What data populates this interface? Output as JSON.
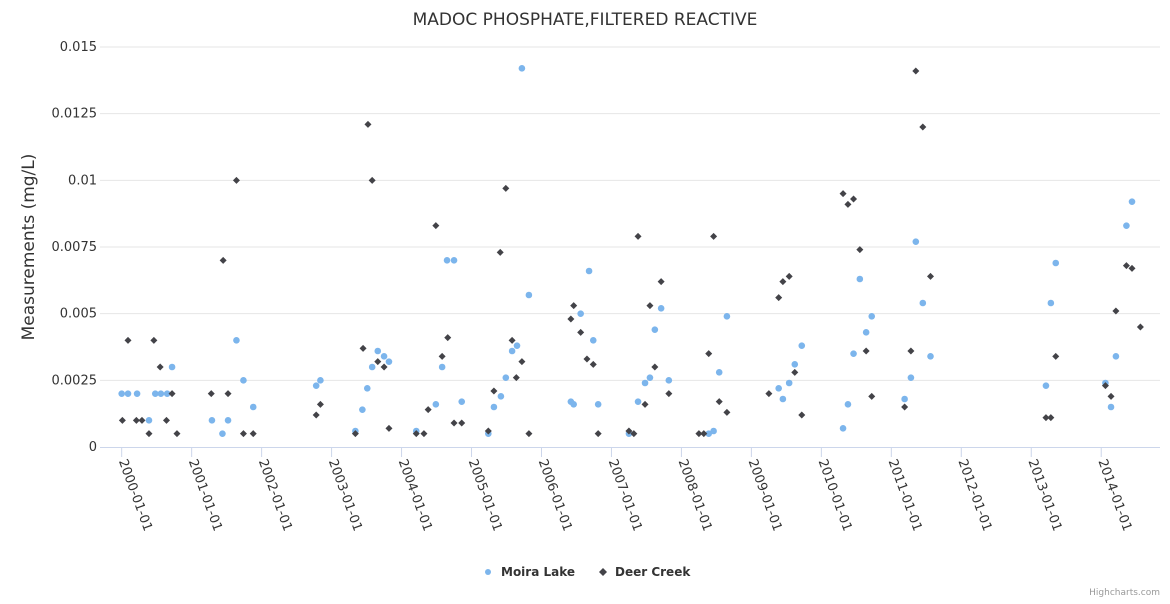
{
  "chart_data": {
    "type": "scatter",
    "title": "MADOC PHOSPHATE,FILTERED REACTIVE",
    "xlabel": "",
    "ylabel": "Measurements (mg/L)",
    "xlim": [
      1999.69,
      2014.84
    ],
    "ylim": [
      0,
      0.015
    ],
    "grid": true,
    "legend_position": "bottom-center",
    "x_ticks": [
      2000,
      2001,
      2002,
      2003,
      2004,
      2005,
      2006,
      2007,
      2008,
      2009,
      2010,
      2011,
      2012,
      2013,
      2014
    ],
    "x_tick_labels": [
      "2000-01-01",
      "2001-01-01",
      "2002-01-01",
      "2003-01-01",
      "2004-01-01",
      "2005-01-01",
      "2006-01-01",
      "2007-01-01",
      "2008-01-01",
      "2009-01-01",
      "2010-01-01",
      "2011-01-01",
      "2012-01-01",
      "2013-01-01",
      "2014-01-01"
    ],
    "y_ticks": [
      0,
      0.0025,
      0.005,
      0.0075,
      0.01,
      0.0125,
      0.015
    ],
    "y_tick_labels": [
      "0",
      "0.0025",
      "0.005",
      "0.0075",
      "0.01",
      "0.0125",
      "0.015"
    ],
    "series": [
      {
        "name": "Moira Lake",
        "color": "#7cb5ec",
        "marker": "circle",
        "x": [
          2000.0,
          2000.09,
          2000.22,
          2000.39,
          2000.48,
          2000.56,
          2000.65,
          2000.72,
          2001.29,
          2001.44,
          2001.52,
          2001.64,
          2001.74,
          2001.88,
          2002.78,
          2002.84,
          2003.34,
          2003.44,
          2003.51,
          2003.58,
          2003.66,
          2003.75,
          2003.82,
          2004.21,
          2004.49,
          2004.58,
          2004.65,
          2004.75,
          2004.86,
          2005.24,
          2005.32,
          2005.42,
          2005.49,
          2005.58,
          2005.65,
          2005.72,
          2005.82,
          2006.42,
          2006.46,
          2006.56,
          2006.68,
          2006.74,
          2006.81,
          2007.25,
          2007.38,
          2007.48,
          2007.55,
          2007.62,
          2007.71,
          2007.82,
          2008.39,
          2008.46,
          2008.54,
          2008.65,
          2009.39,
          2009.45,
          2009.54,
          2009.62,
          2009.72,
          2010.31,
          2010.38,
          2010.46,
          2010.55,
          2010.64,
          2010.72,
          2011.19,
          2011.28,
          2011.35,
          2011.45,
          2011.56,
          2013.21,
          2013.28,
          2013.35,
          2014.06,
          2014.14,
          2014.21,
          2014.36,
          2014.44
        ],
        "y": [
          0.002,
          0.002,
          0.002,
          0.001,
          0.002,
          0.002,
          0.002,
          0.003,
          0.001,
          0.0005,
          0.001,
          0.004,
          0.0025,
          0.0015,
          0.0023,
          0.0025,
          0.0006,
          0.0014,
          0.0022,
          0.003,
          0.0036,
          0.0034,
          0.0032,
          0.0006,
          0.0016,
          0.003,
          0.007,
          0.007,
          0.0017,
          0.0005,
          0.0015,
          0.0019,
          0.0026,
          0.0036,
          0.0038,
          0.0142,
          0.0057,
          0.0017,
          0.0016,
          0.005,
          0.0066,
          0.004,
          0.0016,
          0.0005,
          0.0017,
          0.0024,
          0.0026,
          0.0044,
          0.0052,
          0.0025,
          0.0005,
          0.0006,
          0.0028,
          0.0049,
          0.0022,
          0.0018,
          0.0024,
          0.0031,
          0.0038,
          0.0007,
          0.0016,
          0.0035,
          0.0063,
          0.0043,
          0.0049,
          0.0018,
          0.0026,
          0.0077,
          0.0054,
          0.0034,
          0.0023,
          0.0054,
          0.0069,
          0.0024,
          0.0015,
          0.0034,
          0.0083,
          0.0092
        ]
      },
      {
        "name": "Deer Creek",
        "color": "#434348",
        "marker": "diamond",
        "x": [
          2000.01,
          2000.09,
          2000.21,
          2000.29,
          2000.39,
          2000.46,
          2000.55,
          2000.64,
          2000.72,
          2000.79,
          2001.28,
          2001.45,
          2001.52,
          2001.64,
          2001.74,
          2001.88,
          2002.78,
          2002.84,
          2003.34,
          2003.45,
          2003.52,
          2003.58,
          2003.66,
          2003.75,
          2003.82,
          2004.21,
          2004.32,
          2004.38,
          2004.49,
          2004.58,
          2004.66,
          2004.75,
          2004.86,
          2005.24,
          2005.32,
          2005.41,
          2005.49,
          2005.58,
          2005.64,
          2005.72,
          2005.82,
          2006.42,
          2006.46,
          2006.56,
          2006.65,
          2006.74,
          2006.81,
          2007.25,
          2007.32,
          2007.38,
          2007.48,
          2007.55,
          2007.62,
          2007.71,
          2007.82,
          2008.25,
          2008.32,
          2008.39,
          2008.46,
          2008.54,
          2008.65,
          2009.25,
          2009.39,
          2009.45,
          2009.54,
          2009.62,
          2009.72,
          2010.31,
          2010.38,
          2010.46,
          2010.55,
          2010.64,
          2010.72,
          2011.19,
          2011.28,
          2011.35,
          2011.45,
          2011.56,
          2013.21,
          2013.28,
          2013.35,
          2014.06,
          2014.14,
          2014.21,
          2014.36,
          2014.44,
          2014.56
        ],
        "y": [
          0.001,
          0.004,
          0.001,
          0.001,
          0.0005,
          0.004,
          0.003,
          0.001,
          0.002,
          0.0005,
          0.002,
          0.007,
          0.002,
          0.01,
          0.0005,
          0.0005,
          0.0012,
          0.0016,
          0.0005,
          0.0037,
          0.0121,
          0.01,
          0.0032,
          0.003,
          0.0007,
          0.0005,
          0.0005,
          0.0014,
          0.0083,
          0.0034,
          0.0041,
          0.0009,
          0.0009,
          0.0006,
          0.0021,
          0.0073,
          0.0097,
          0.004,
          0.0026,
          0.0032,
          0.0005,
          0.0048,
          0.0053,
          0.0043,
          0.0033,
          0.0031,
          0.0005,
          0.0006,
          0.0005,
          0.0079,
          0.0016,
          0.0053,
          0.003,
          0.0062,
          0.002,
          0.0005,
          0.0005,
          0.0035,
          0.0079,
          0.0017,
          0.0013,
          0.002,
          0.0056,
          0.0062,
          0.0064,
          0.0028,
          0.0012,
          0.0095,
          0.0091,
          0.0093,
          0.0074,
          0.0036,
          0.0019,
          0.0015,
          0.0036,
          0.0141,
          0.012,
          0.0064,
          0.0011,
          0.0011,
          0.0034,
          0.0023,
          0.0019,
          0.0051,
          0.0068,
          0.0067,
          0.0045
        ]
      }
    ]
  },
  "credits": "Highcharts.com"
}
